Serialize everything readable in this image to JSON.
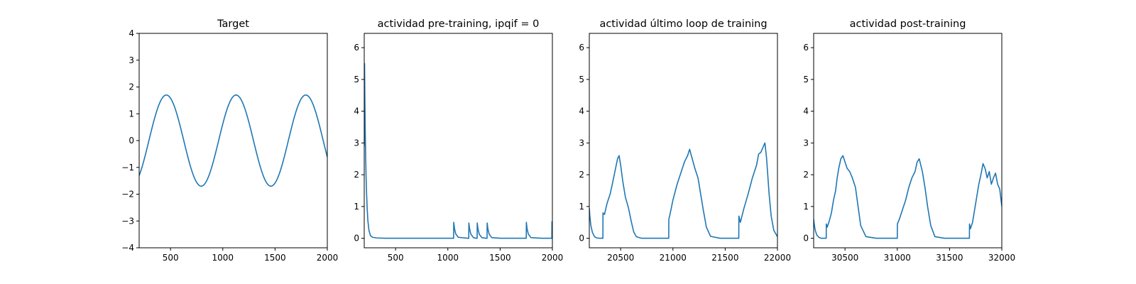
{
  "colors": {
    "line": "#1f77b4",
    "axes": "#000000",
    "background": "#ffffff"
  },
  "chart_data": [
    {
      "type": "line",
      "title": "Target",
      "xlabel": "",
      "ylabel": "",
      "xlim": [
        200,
        2000
      ],
      "ylim": [
        -4,
        4
      ],
      "xticks": [
        500,
        1000,
        1500,
        2000
      ],
      "yticks": [
        -4,
        -3,
        -2,
        -1,
        0,
        1,
        2,
        3,
        4
      ],
      "grid": false,
      "series": [
        {
          "shape": "sine",
          "amplitude": 1.7,
          "period": 667,
          "peak_x": [
            460,
            1125,
            1790
          ],
          "trough_x": [
            790,
            1455
          ]
        }
      ]
    },
    {
      "type": "line",
      "title": "actividad pre-training, ipqif = 0",
      "xlabel": "",
      "ylabel": "",
      "xlim": [
        200,
        2000
      ],
      "ylim": [
        -0.3,
        6.45
      ],
      "xticks": [
        500,
        1000,
        1500,
        2000
      ],
      "yticks": [
        0,
        1,
        2,
        3,
        4,
        5,
        6
      ],
      "grid": false,
      "series": [
        {
          "x": [
            200,
            203,
            206,
            210,
            214,
            218,
            222,
            228,
            235,
            245,
            260,
            280,
            320,
            400,
            1055,
            1056,
            1064,
            1075,
            1100,
            1190,
            1200,
            1201,
            1208,
            1220,
            1245,
            1270,
            1280,
            1281,
            1288,
            1300,
            1325,
            1365,
            1375,
            1376,
            1383,
            1395,
            1420,
            1500,
            1740,
            1750,
            1751,
            1758,
            1770,
            1795,
            1900,
            1990,
            1995,
            1996,
            2000
          ],
          "y": [
            2.9,
            5.5,
            4.4,
            3.3,
            2.5,
            1.9,
            1.45,
            0.95,
            0.55,
            0.25,
            0.08,
            0.03,
            0.01,
            0.0,
            0.0,
            0.5,
            0.3,
            0.14,
            0.03,
            0.0,
            0.0,
            0.48,
            0.3,
            0.13,
            0.02,
            0.0,
            0.0,
            0.48,
            0.3,
            0.13,
            0.02,
            0.0,
            0.0,
            0.48,
            0.3,
            0.13,
            0.02,
            0.0,
            0.0,
            0.0,
            0.5,
            0.3,
            0.13,
            0.02,
            0.0,
            0.0,
            0.0,
            0.52,
            0.45
          ]
        }
      ]
    },
    {
      "type": "line",
      "title": "actividad último loop de training",
      "xlabel": "",
      "ylabel": "",
      "xlim": [
        20200,
        22000
      ],
      "ylim": [
        -0.3,
        6.45
      ],
      "xticks": [
        20500,
        21000,
        21500,
        22000
      ],
      "yticks": [
        0,
        1,
        2,
        3,
        4,
        5,
        6
      ],
      "grid": false,
      "series": [
        {
          "x": [
            20200,
            20205,
            20215,
            20230,
            20250,
            20270,
            20300,
            20320,
            20330,
            20331,
            20345,
            20370,
            20400,
            20420,
            20445,
            20470,
            20485,
            20500,
            20520,
            20545,
            20575,
            20600,
            20625,
            20650,
            20700,
            20800,
            20960,
            20961,
            20975,
            21000,
            21040,
            21080,
            21110,
            21140,
            21160,
            21185,
            21210,
            21240,
            21265,
            21290,
            21320,
            21360,
            21450,
            21630,
            21631,
            21645,
            21680,
            21720,
            21760,
            21800,
            21820,
            21840,
            21860,
            21880,
            21895,
            21905,
            21920,
            21940,
            21965,
            22000
          ],
          "y": [
            0.95,
            0.7,
            0.4,
            0.18,
            0.05,
            0.01,
            0.0,
            0.0,
            0.0,
            0.8,
            0.75,
            1.1,
            1.4,
            1.7,
            2.1,
            2.5,
            2.6,
            2.3,
            1.8,
            1.3,
            0.95,
            0.55,
            0.2,
            0.05,
            0.0,
            0.0,
            0.0,
            0.6,
            0.8,
            1.2,
            1.7,
            2.1,
            2.4,
            2.6,
            2.8,
            2.5,
            2.2,
            1.9,
            1.4,
            0.9,
            0.35,
            0.06,
            0.0,
            0.0,
            0.7,
            0.5,
            0.95,
            1.4,
            1.9,
            2.3,
            2.65,
            2.7,
            2.85,
            3.0,
            2.55,
            2.1,
            1.4,
            0.7,
            0.25,
            0.05
          ]
        }
      ]
    },
    {
      "type": "line",
      "title": "actividad post-training",
      "xlabel": "",
      "ylabel": "",
      "xlim": [
        30200,
        32000
      ],
      "ylim": [
        -0.3,
        6.45
      ],
      "xticks": [
        30500,
        31000,
        31500,
        32000
      ],
      "yticks": [
        0,
        1,
        2,
        3,
        4,
        5,
        6
      ],
      "grid": false,
      "series": [
        {
          "x": [
            30200,
            30205,
            30215,
            30230,
            30250,
            30270,
            30320,
            30321,
            30330,
            30350,
            30370,
            30390,
            30410,
            30425,
            30440,
            30460,
            30480,
            30500,
            30520,
            30545,
            30570,
            30600,
            30625,
            30650,
            30700,
            30800,
            31000,
            31001,
            31020,
            31050,
            31080,
            31110,
            31140,
            31170,
            31190,
            31210,
            31240,
            31265,
            31290,
            31320,
            31360,
            31450,
            31690,
            31691,
            31700,
            31720,
            31740,
            31760,
            31780,
            31800,
            31820,
            31840,
            31860,
            31880,
            31900,
            31920,
            31940,
            31960,
            31980,
            32000
          ],
          "y": [
            0.6,
            0.45,
            0.25,
            0.1,
            0.03,
            0.0,
            0.0,
            0.45,
            0.35,
            0.55,
            0.8,
            1.2,
            1.5,
            1.9,
            2.2,
            2.5,
            2.6,
            2.4,
            2.2,
            2.1,
            1.9,
            1.6,
            1.0,
            0.4,
            0.05,
            0.0,
            0.0,
            0.45,
            0.6,
            0.9,
            1.2,
            1.6,
            1.9,
            2.1,
            2.4,
            2.5,
            2.1,
            1.6,
            1.0,
            0.4,
            0.05,
            0.0,
            0.0,
            0.45,
            0.3,
            0.5,
            0.9,
            1.3,
            1.7,
            2.0,
            2.35,
            2.2,
            1.9,
            2.1,
            1.7,
            1.9,
            2.05,
            1.7,
            1.55,
            1.0
          ]
        }
      ]
    }
  ]
}
